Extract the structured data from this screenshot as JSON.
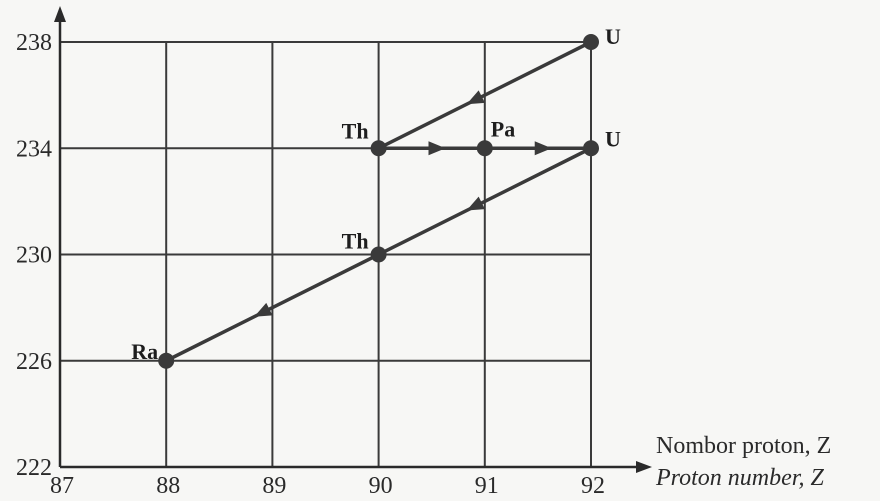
{
  "chart_data": {
    "type": "line",
    "xlabel": "Nombor proton, Z",
    "xlabel_translation": "Proton number, Z",
    "ylabel": "",
    "x_ticks": [
      87,
      88,
      89,
      90,
      91,
      92
    ],
    "y_ticks": [
      222,
      226,
      230,
      234,
      238
    ],
    "xlim": [
      87,
      92
    ],
    "ylim": [
      222,
      238
    ],
    "grid": true,
    "points": [
      {
        "label": "U",
        "x": 92,
        "y": 238
      },
      {
        "label": "Th",
        "x": 90,
        "y": 234
      },
      {
        "label": "Pa",
        "x": 91,
        "y": 234
      },
      {
        "label": "U",
        "x": 92,
        "y": 234
      },
      {
        "label": "Th",
        "x": 90,
        "y": 230
      },
      {
        "label": "Ra",
        "x": 88,
        "y": 226
      }
    ],
    "transitions": [
      {
        "from": [
          92,
          238
        ],
        "to": [
          90,
          234
        ]
      },
      {
        "from": [
          90,
          234
        ],
        "to": [
          91,
          234
        ]
      },
      {
        "from": [
          91,
          234
        ],
        "to": [
          92,
          234
        ]
      },
      {
        "from": [
          92,
          234
        ],
        "to": [
          90,
          230
        ]
      },
      {
        "from": [
          90,
          230
        ],
        "to": [
          88,
          226
        ]
      }
    ]
  }
}
